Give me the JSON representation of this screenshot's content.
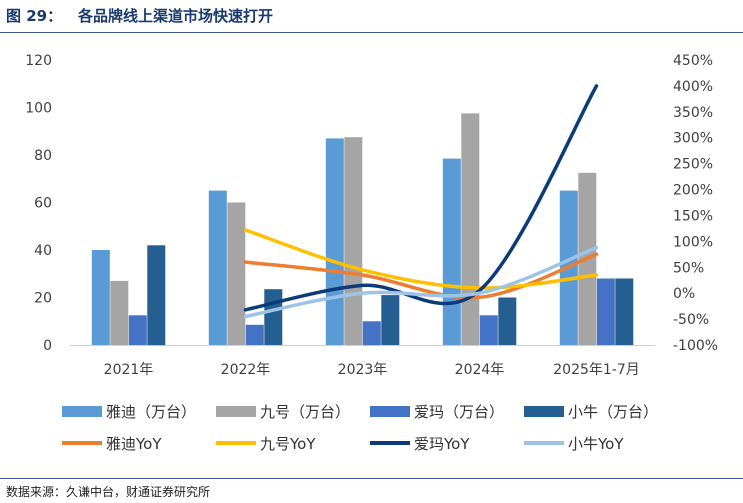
{
  "header": {
    "figure_no": "图 29：",
    "title": "各品牌线上渠道市场快速打开"
  },
  "source": "数据来源：久谦中台，财通证券研究所",
  "colors": {
    "yadi_bar": "#5b9bd5",
    "jiuhao_bar": "#a5a5a5",
    "aima_bar": "#4472c4",
    "xiaoniu_bar": "#255e91",
    "yadi_yoy": "#ed7d31",
    "jiuhao_yoy": "#ffc000",
    "aima_yoy": "#0d3b7a",
    "xiaoniu_yoy": "#9dc3e6",
    "title": "#1a3a6e"
  },
  "chart_data": {
    "type": "bar",
    "categories": [
      "2021年",
      "2022年",
      "2023年",
      "2024年",
      "2025年1-7月"
    ],
    "series": [
      {
        "name": "雅迪（万台）",
        "kind": "bar",
        "axis": "left",
        "color": "#5b9bd5",
        "values": [
          40,
          65,
          87,
          78.5,
          65
        ]
      },
      {
        "name": "九号（万台）",
        "kind": "bar",
        "axis": "left",
        "color": "#a5a5a5",
        "values": [
          27,
          60,
          87.5,
          97.5,
          72.5
        ]
      },
      {
        "name": "爱玛（万台）",
        "kind": "bar",
        "axis": "left",
        "color": "#4472c4",
        "values": [
          12.5,
          8.5,
          10,
          12.5,
          28
        ]
      },
      {
        "name": "小牛（万台）",
        "kind": "bar",
        "axis": "left",
        "color": "#255e91",
        "values": [
          42,
          23.5,
          21,
          20,
          28
        ]
      },
      {
        "name": "雅迪YoY",
        "kind": "line",
        "axis": "right",
        "color": "#ed7d31",
        "values": [
          null,
          0.6,
          0.35,
          -0.08,
          0.75
        ]
      },
      {
        "name": "九号YoY",
        "kind": "line",
        "axis": "right",
        "color": "#ffc000",
        "values": [
          null,
          1.22,
          0.45,
          0.1,
          0.35
        ]
      },
      {
        "name": "爱玛YoY",
        "kind": "line",
        "axis": "right",
        "color": "#0d3b7a",
        "values": [
          null,
          -0.32,
          0.15,
          0.05,
          4.0
        ]
      },
      {
        "name": "小牛YoY",
        "kind": "line",
        "axis": "right",
        "color": "#9dc3e6",
        "values": [
          null,
          -0.45,
          0.0,
          0.0,
          0.88
        ]
      }
    ],
    "y_left": {
      "min": 0,
      "max": 120,
      "ticks": [
        "0",
        "20",
        "40",
        "60",
        "80",
        "100",
        "120"
      ]
    },
    "y_right": {
      "min": -1,
      "max": 4.5,
      "ticks": [
        "-100%",
        "-50%",
        "0%",
        "50%",
        "100%",
        "150%",
        "200%",
        "250%",
        "300%",
        "350%",
        "400%",
        "450%"
      ]
    },
    "grid": false,
    "legend": "bottom"
  }
}
